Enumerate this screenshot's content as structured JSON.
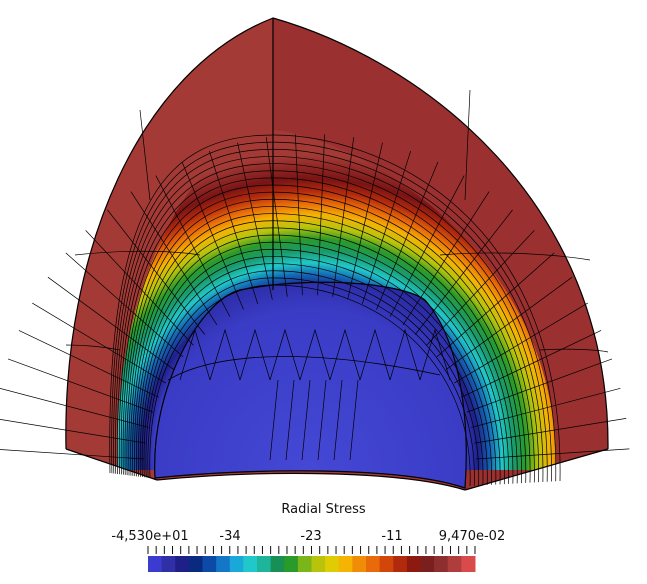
{
  "scalar_bar": {
    "title": "Radial Stress",
    "labels": [
      "-4,530e+01",
      "-34",
      "-23",
      "-11",
      "9,470e-02"
    ],
    "range": [
      -45.3,
      0.0947
    ],
    "colors": [
      "#3b3ccf",
      "#2f2fa6",
      "#1f1f8a",
      "#0a2a80",
      "#0b4aa6",
      "#1376c6",
      "#19a8d8",
      "#21c8c9",
      "#1fb59a",
      "#178f55",
      "#2a9a2a",
      "#7ab51a",
      "#b8c40c",
      "#e0cc05",
      "#f5b304",
      "#f18c07",
      "#e86a0a",
      "#d2460c",
      "#b22a0d",
      "#8c1a10",
      "#7a1e1e",
      "#8f2e2e",
      "#b03d3d",
      "#d94b4b"
    ]
  },
  "colormap": {
    "background": "#ffffff",
    "outer_shell": "#a33a36",
    "mesh_line": "#000000"
  }
}
